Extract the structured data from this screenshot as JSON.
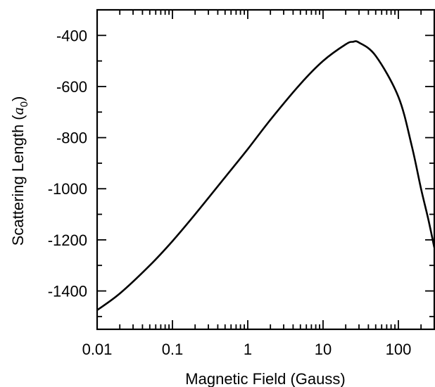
{
  "chart_data": {
    "type": "line",
    "title": "",
    "xlabel": "Magnetic Field (Gauss)",
    "ylabel_prefix": "Scattering Length (",
    "ylabel_symbol": "a",
    "ylabel_subscript": "0",
    "ylabel_suffix": ")",
    "x_scale": "log",
    "xlim": [
      0.01,
      300
    ],
    "ylim": [
      -1550,
      -300
    ],
    "x_ticks": [
      {
        "value": 0.01,
        "label": "0.01"
      },
      {
        "value": 0.1,
        "label": "0.1"
      },
      {
        "value": 1,
        "label": "1"
      },
      {
        "value": 10,
        "label": "10"
      },
      {
        "value": 100,
        "label": "100"
      }
    ],
    "y_ticks": [
      {
        "value": -1400,
        "label": "-1400"
      },
      {
        "value": -1200,
        "label": "-1200"
      },
      {
        "value": -1000,
        "label": "-1000"
      },
      {
        "value": -800,
        "label": "-800"
      },
      {
        "value": -600,
        "label": "-600"
      },
      {
        "value": -400,
        "label": "-400"
      }
    ],
    "grid": false,
    "legend": "none",
    "series": [
      {
        "color": "#000000",
        "x": [
          0.01,
          0.02,
          0.05,
          0.1,
          0.2,
          0.5,
          1,
          2,
          5,
          10,
          20,
          25,
          30,
          50,
          100,
          150,
          200,
          250,
          300
        ],
        "y": [
          -1475,
          -1410,
          -1300,
          -1205,
          -1100,
          -955,
          -845,
          -730,
          -590,
          -500,
          -435,
          -425,
          -428,
          -480,
          -640,
          -830,
          -1000,
          -1120,
          -1230
        ]
      }
    ]
  }
}
